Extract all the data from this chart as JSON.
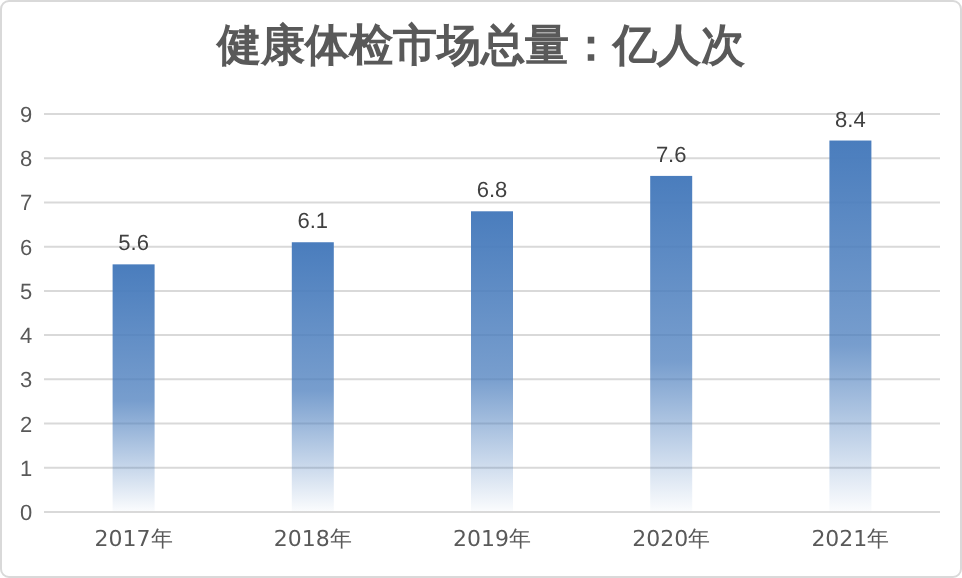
{
  "chart_data": {
    "type": "bar",
    "title": "健康体检市场总量：亿人次",
    "categories": [
      "2017年",
      "2018年",
      "2019年",
      "2020年",
      "2021年"
    ],
    "values": [
      5.6,
      6.1,
      6.8,
      7.6,
      8.4
    ],
    "color": "#4a7dbd",
    "ylim": [
      0,
      9
    ],
    "yticks": [
      0,
      1,
      2,
      3,
      4,
      5,
      6,
      7,
      8,
      9
    ],
    "grid": "y",
    "data_labels": true
  }
}
